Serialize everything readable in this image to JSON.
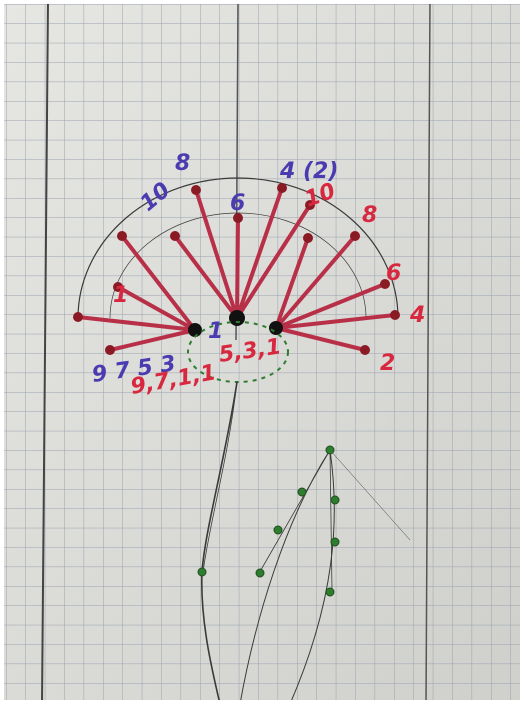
{
  "labels": {
    "blue": [
      "8",
      "10",
      "6",
      "4 (2)",
      "9 7 5 3",
      "1"
    ],
    "red": [
      "10",
      "8",
      "6",
      "4",
      "2",
      "1",
      "5,3,1",
      "9,7,1,1"
    ]
  }
}
